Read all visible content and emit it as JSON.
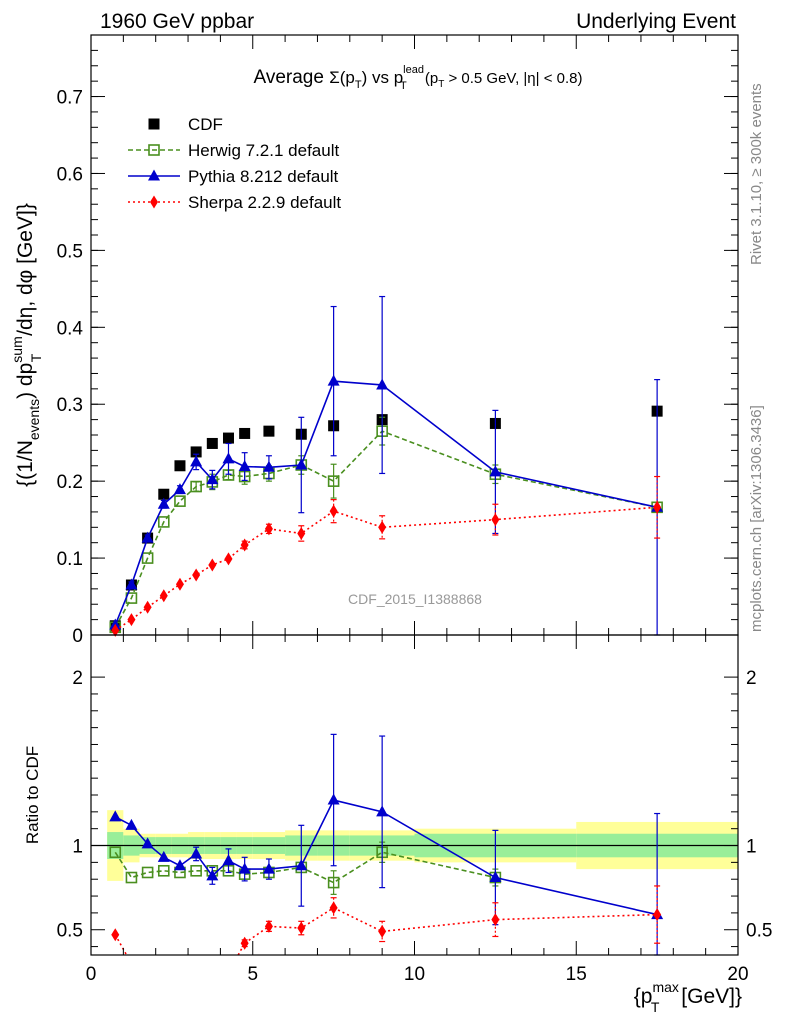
{
  "header": {
    "left": "1960 GeV ppbar",
    "right": "Underlying Event"
  },
  "side_labels": {
    "rivet": "Rivet 3.1.10, ≥ 300k events",
    "mcplots": "mcplots.cern.ch [arXiv:1306.3436]"
  },
  "watermark": "CDF_2015_I1388868",
  "chart_data": [
    {
      "type": "scatter",
      "panel": "main",
      "title": "Average Σ(pT) vs pT lead (pT > 0.5 GeV, |η| < 0.8)",
      "title_parts": {
        "pre": "Average ",
        "sigma": "Σ(p",
        "t_sub": "T",
        "close": ")",
        "vs": " vs p",
        "lead_sup": "lead",
        "t_sub2": "T",
        "cut_open": " (p",
        "t_sub3": "T",
        "cut_rest": " > 0.5 GeV, |η| < 0.8)"
      },
      "ylabel": "{(1/Nevents) dpTsum/dη, dφ [GeV]}",
      "ylabel_parts": {
        "a": "{(1/N",
        "events_sub": "events",
        "b": ") dp",
        "sum_sup": "sum",
        "t_sub": "T",
        "c": " /dη, dφ [GeV]}"
      },
      "xlim": [
        0,
        20
      ],
      "ylim": [
        0,
        0.78
      ],
      "yticks": [
        "0",
        "0.1",
        "0.2",
        "0.3",
        "0.4",
        "0.5",
        "0.6",
        "0.7"
      ],
      "ytick_values": [
        0,
        0.1,
        0.2,
        0.3,
        0.4,
        0.5,
        0.6,
        0.7
      ],
      "legend_position": "top-left",
      "series": [
        {
          "name": "CDF",
          "color": "#000000",
          "marker": "square-filled",
          "line": "none",
          "x": [
            0.75,
            1.25,
            1.75,
            2.25,
            2.75,
            3.25,
            3.75,
            4.25,
            4.75,
            5.5,
            6.5,
            7.5,
            9.0,
            12.5,
            17.5
          ],
          "y": [
            0.012,
            0.065,
            0.126,
            0.183,
            0.22,
            0.238,
            0.249,
            0.256,
            0.262,
            0.265,
            0.261,
            0.272,
            0.28,
            0.275,
            0.291
          ],
          "err": [
            0,
            0,
            0,
            0,
            0,
            0,
            0,
            0,
            0,
            0,
            0,
            0,
            0,
            0,
            0
          ]
        },
        {
          "name": "Herwig 7.2.1 default",
          "color": "#4a8f1f",
          "marker": "square-open",
          "line": "dashed",
          "x": [
            0.75,
            1.25,
            1.75,
            2.25,
            2.75,
            3.25,
            3.75,
            4.25,
            4.75,
            5.5,
            6.5,
            7.5,
            9.0,
            12.5,
            17.5
          ],
          "y": [
            0.01,
            0.048,
            0.1,
            0.147,
            0.174,
            0.193,
            0.199,
            0.208,
            0.206,
            0.21,
            0.221,
            0.2,
            0.265,
            0.209,
            0.166
          ],
          "err": [
            0,
            0,
            0,
            0,
            0,
            0.006,
            0.01,
            0.006,
            0.01,
            0.01,
            0.012,
            0.022,
            0.018,
            0.012,
            0
          ]
        },
        {
          "name": "Pythia 8.212 default",
          "color": "#0000cc",
          "marker": "triangle-filled",
          "line": "solid",
          "x": [
            0.75,
            1.25,
            1.75,
            2.25,
            2.75,
            3.25,
            3.75,
            4.25,
            4.75,
            5.5,
            6.5,
            7.5,
            9.0,
            12.5,
            17.5
          ],
          "y": [
            0.013,
            0.065,
            0.126,
            0.17,
            0.189,
            0.225,
            0.202,
            0.229,
            0.219,
            0.218,
            0.221,
            0.33,
            0.325,
            0.212,
            0.166
          ],
          "err": [
            0,
            0.004,
            0.004,
            0.005,
            0.005,
            0.01,
            0.012,
            0.02,
            0.018,
            0.015,
            0.062,
            0.097,
            0.115,
            0.08,
            0.166
          ]
        },
        {
          "name": "Sherpa 2.2.9 default",
          "color": "#ff0000",
          "marker": "diamond-filled",
          "line": "dotted",
          "x": [
            0.75,
            1.25,
            1.75,
            2.25,
            2.75,
            3.25,
            3.75,
            4.25,
            4.75,
            5.5,
            6.5,
            7.5,
            9.0,
            12.5,
            17.5
          ],
          "y": [
            0.006,
            0.02,
            0.036,
            0.051,
            0.066,
            0.078,
            0.091,
            0.099,
            0.117,
            0.138,
            0.132,
            0.161,
            0.14,
            0.15,
            0.166
          ],
          "err": [
            0,
            0,
            0,
            0,
            0,
            0,
            0,
            0,
            0.005,
            0.006,
            0.01,
            0.015,
            0.015,
            0.02,
            0.04
          ]
        }
      ]
    },
    {
      "type": "scatter",
      "panel": "ratio",
      "ylabel": "Ratio to CDF",
      "xlabel": "{pTmax [GeV]}",
      "xlabel_parts": {
        "open": "{p",
        "max_sup": "max",
        "t_sub": "T",
        "rest": " [GeV]}"
      },
      "xlim": [
        0,
        20
      ],
      "ylim": [
        0.35,
        2.25
      ],
      "xticks": [
        "0",
        "5",
        "10",
        "15",
        "20"
      ],
      "xtick_values": [
        0,
        5,
        10,
        15,
        20
      ],
      "yticks": [
        "0.5",
        "1",
        "2"
      ],
      "ytick_values": [
        0.5,
        1,
        2
      ],
      "reference_line": 1,
      "bands": {
        "edges": [
          0.5,
          1.0,
          1.5,
          2.0,
          2.5,
          3.0,
          3.5,
          4.0,
          4.5,
          5.0,
          6.0,
          7.0,
          8.0,
          10.0,
          15.0,
          20.0
        ],
        "yellow_halfwidth": [
          0.21,
          0.1,
          0.07,
          0.07,
          0.07,
          0.08,
          0.08,
          0.08,
          0.08,
          0.08,
          0.09,
          0.09,
          0.09,
          0.1,
          0.14
        ],
        "green_halfwidth": [
          0.08,
          0.06,
          0.05,
          0.05,
          0.05,
          0.05,
          0.05,
          0.05,
          0.05,
          0.05,
          0.06,
          0.06,
          0.06,
          0.07,
          0.07
        ],
        "yellow_color": "#ffff99",
        "green_color": "#99ee99"
      },
      "series": [
        {
          "name": "Herwig 7.2.1 default",
          "color": "#4a8f1f",
          "marker": "square-open",
          "line": "dashed",
          "x": [
            0.75,
            1.25,
            1.75,
            2.25,
            2.75,
            3.25,
            3.75,
            4.25,
            4.75,
            5.5,
            6.5,
            7.5,
            9.0,
            12.5
          ],
          "y": [
            0.96,
            0.81,
            0.84,
            0.85,
            0.84,
            0.85,
            0.85,
            0.85,
            0.83,
            0.84,
            0.87,
            0.78,
            0.96,
            0.81
          ],
          "err": [
            0,
            0,
            0,
            0,
            0,
            0,
            0,
            0,
            0,
            0,
            0,
            0.07,
            0.06,
            0.05
          ]
        },
        {
          "name": "Pythia 8.212 default",
          "color": "#0000cc",
          "marker": "triangle-filled",
          "line": "solid",
          "x": [
            0.75,
            1.25,
            1.75,
            2.25,
            2.75,
            3.25,
            3.75,
            4.25,
            4.75,
            5.5,
            6.5,
            7.5,
            9.0,
            12.5,
            17.5
          ],
          "y": [
            1.17,
            1.12,
            1.01,
            0.93,
            0.88,
            0.95,
            0.82,
            0.91,
            0.86,
            0.86,
            0.88,
            1.27,
            1.2,
            0.81,
            0.59
          ],
          "err": [
            0,
            0,
            0,
            0,
            0,
            0.04,
            0.05,
            0.07,
            0.07,
            0.06,
            0.24,
            0.39,
            0.45,
            0.28,
            0.6
          ]
        },
        {
          "name": "Sherpa 2.2.9 default",
          "color": "#ff0000",
          "marker": "diamond-filled",
          "line": "dotted",
          "x": [
            0.75,
            4.75,
            5.5,
            6.5,
            7.5,
            9.0,
            12.5,
            17.5
          ],
          "y": [
            0.47,
            0.42,
            0.52,
            0.51,
            0.63,
            0.49,
            0.56,
            0.59
          ],
          "err": [
            0,
            0.02,
            0.03,
            0.04,
            0.06,
            0.06,
            0.1,
            0.17
          ],
          "exits_below_from_x": 1.1
        }
      ]
    }
  ]
}
